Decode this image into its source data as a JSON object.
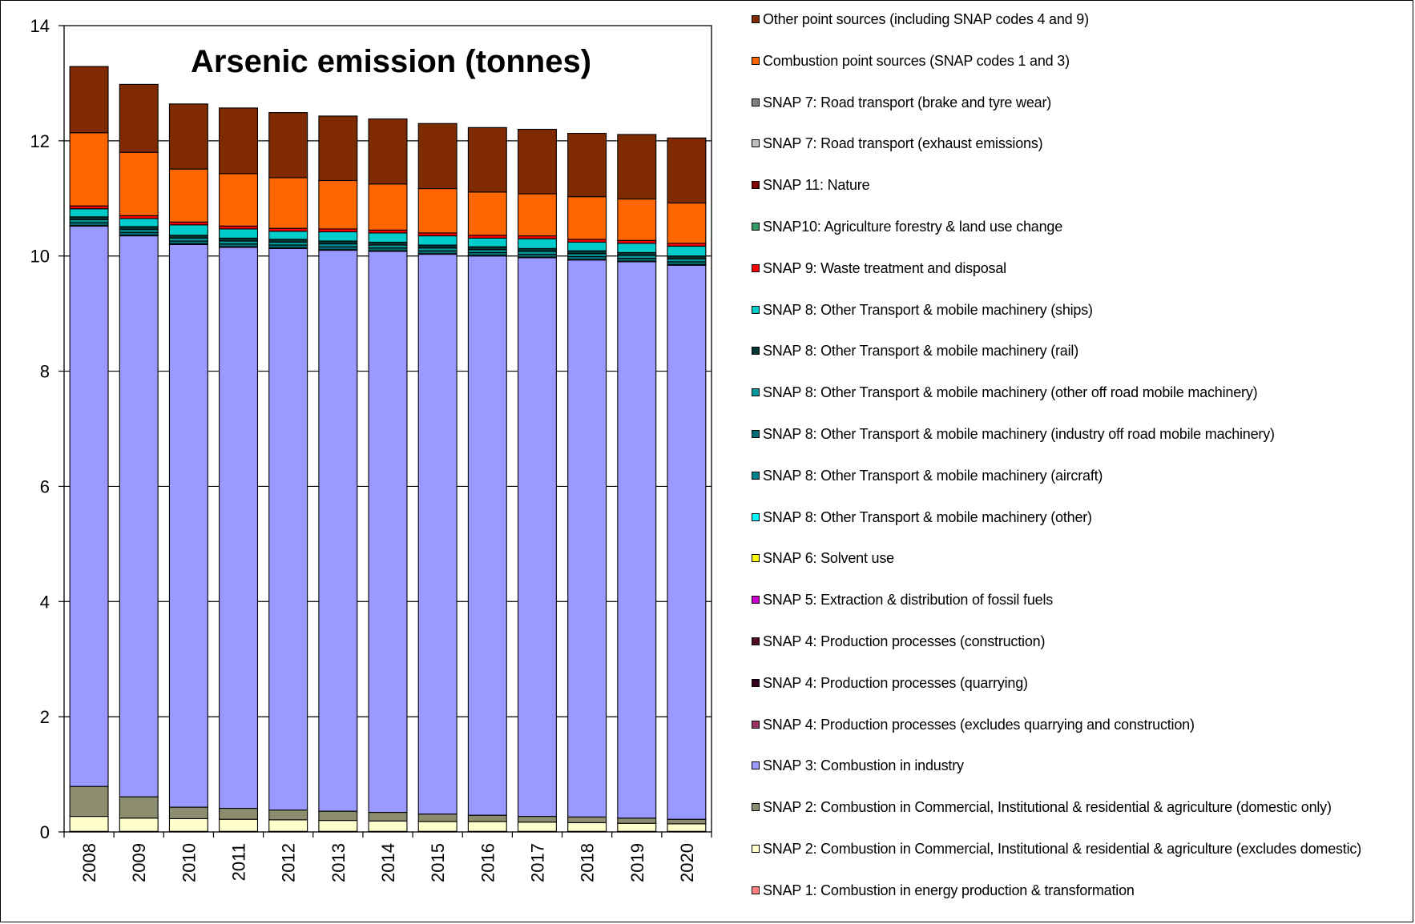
{
  "chart_data": {
    "type": "bar",
    "stacked": true,
    "title": "Arsenic emission (tonnes)",
    "xlabel": "",
    "ylabel": "",
    "ylim": [
      0,
      14
    ],
    "yticks": [
      0,
      2,
      4,
      6,
      8,
      10,
      12,
      14
    ],
    "grid": true,
    "legend_position": "right",
    "categories": [
      "2008",
      "2009",
      "2010",
      "2011",
      "2012",
      "2013",
      "2014",
      "2015",
      "2016",
      "2017",
      "2018",
      "2019",
      "2020"
    ],
    "series": [
      {
        "name": "SNAP 1: Combustion in energy production & transformation",
        "color": "#ff8080",
        "values": [
          0.01,
          0.01,
          0.01,
          0.01,
          0.01,
          0.01,
          0.01,
          0.01,
          0.01,
          0.01,
          0.01,
          0.01,
          0.01
        ]
      },
      {
        "name": "SNAP 2: Combustion in Commercial, Institutional & residential & agriculture (excludes domestic)",
        "color": "#ffffcc",
        "values": [
          0.26,
          0.23,
          0.22,
          0.21,
          0.2,
          0.19,
          0.18,
          0.17,
          0.17,
          0.16,
          0.15,
          0.14,
          0.13
        ]
      },
      {
        "name": "SNAP 2: Combustion in Commercial, Institutional & residential & agriculture (domestic only)",
        "color": "#8c8c6e",
        "values": [
          0.52,
          0.37,
          0.2,
          0.19,
          0.17,
          0.16,
          0.15,
          0.13,
          0.11,
          0.1,
          0.1,
          0.09,
          0.08
        ]
      },
      {
        "name": "SNAP 3: Combustion in industry",
        "color": "#9999ff",
        "values": [
          9.73,
          9.74,
          9.77,
          9.74,
          9.75,
          9.74,
          9.74,
          9.72,
          9.71,
          9.7,
          9.67,
          9.66,
          9.62
        ]
      },
      {
        "name": "SNAP 4: Production processes (excludes quarrying and construction)",
        "color": "#993366",
        "values": [
          0.01,
          0.01,
          0.01,
          0.01,
          0.01,
          0.01,
          0.01,
          0.01,
          0.01,
          0.01,
          0.01,
          0.01,
          0.01
        ]
      },
      {
        "name": "SNAP 4: Production processes (quarrying)",
        "color": "#33001a",
        "values": [
          0.0,
          0.0,
          0.0,
          0.0,
          0.0,
          0.0,
          0.0,
          0.0,
          0.0,
          0.0,
          0.0,
          0.0,
          0.0
        ]
      },
      {
        "name": "SNAP 4: Production processes (construction)",
        "color": "#4d0f1f",
        "values": [
          0.0,
          0.0,
          0.0,
          0.0,
          0.0,
          0.0,
          0.0,
          0.0,
          0.0,
          0.0,
          0.0,
          0.0,
          0.0
        ]
      },
      {
        "name": "SNAP 5: Extraction & distribution of fossil fuels",
        "color": "#cc00cc",
        "values": [
          0.0,
          0.0,
          0.0,
          0.0,
          0.0,
          0.0,
          0.0,
          0.0,
          0.0,
          0.0,
          0.0,
          0.0,
          0.0
        ]
      },
      {
        "name": "SNAP 6: Solvent use",
        "color": "#ffff00",
        "values": [
          0.0,
          0.0,
          0.0,
          0.0,
          0.0,
          0.0,
          0.0,
          0.0,
          0.0,
          0.0,
          0.0,
          0.0,
          0.0
        ]
      },
      {
        "name": "SNAP 8: Other Transport & mobile machinery (other)",
        "color": "#00ffff",
        "values": [
          0.0,
          0.0,
          0.0,
          0.0,
          0.0,
          0.0,
          0.0,
          0.0,
          0.0,
          0.0,
          0.0,
          0.0,
          0.0
        ]
      },
      {
        "name": "SNAP 8: Other Transport & mobile machinery (aircraft)",
        "color": "#00808a",
        "values": [
          0.0,
          0.0,
          0.0,
          0.0,
          0.0,
          0.0,
          0.0,
          0.0,
          0.0,
          0.0,
          0.0,
          0.0,
          0.0
        ]
      },
      {
        "name": "SNAP 8: Other Transport & mobile machinery (industry off road mobile machinery)",
        "color": "#006d75",
        "values": [
          0.05,
          0.05,
          0.05,
          0.05,
          0.05,
          0.05,
          0.05,
          0.05,
          0.05,
          0.05,
          0.05,
          0.05,
          0.05
        ]
      },
      {
        "name": "SNAP 8: Other Transport & mobile machinery (other off road mobile machinery)",
        "color": "#009999",
        "values": [
          0.05,
          0.05,
          0.05,
          0.05,
          0.05,
          0.05,
          0.05,
          0.05,
          0.05,
          0.05,
          0.05,
          0.05,
          0.05
        ]
      },
      {
        "name": "SNAP 8: Other Transport & mobile machinery (rail)",
        "color": "#003333",
        "values": [
          0.05,
          0.05,
          0.05,
          0.05,
          0.05,
          0.05,
          0.05,
          0.05,
          0.05,
          0.05,
          0.05,
          0.05,
          0.05
        ]
      },
      {
        "name": "SNAP 8: Other Transport & mobile machinery (ships)",
        "color": "#00cccc",
        "values": [
          0.14,
          0.14,
          0.18,
          0.16,
          0.14,
          0.16,
          0.16,
          0.16,
          0.15,
          0.17,
          0.15,
          0.16,
          0.17
        ]
      },
      {
        "name": "SNAP 9: Waste treatment and disposal",
        "color": "#ff0000",
        "values": [
          0.05,
          0.05,
          0.05,
          0.05,
          0.05,
          0.05,
          0.05,
          0.05,
          0.05,
          0.05,
          0.05,
          0.05,
          0.05
        ]
      },
      {
        "name": "SNAP10: Agriculture forestry & land use change",
        "color": "#339966",
        "values": [
          0.0,
          0.0,
          0.0,
          0.0,
          0.0,
          0.0,
          0.0,
          0.0,
          0.0,
          0.0,
          0.0,
          0.0,
          0.0
        ]
      },
      {
        "name": "SNAP 11: Nature",
        "color": "#800000",
        "values": [
          0.0,
          0.0,
          0.0,
          0.0,
          0.0,
          0.0,
          0.0,
          0.0,
          0.0,
          0.0,
          0.0,
          0.0,
          0.0
        ]
      },
      {
        "name": "SNAP 7: Road transport (exhaust emissions)",
        "color": "#c0c0c0",
        "values": [
          0.0,
          0.0,
          0.0,
          0.0,
          0.0,
          0.0,
          0.0,
          0.0,
          0.0,
          0.0,
          0.0,
          0.0,
          0.0
        ]
      },
      {
        "name": "SNAP 7: Road transport (brake and tyre wear)",
        "color": "#808080",
        "values": [
          0.0,
          0.0,
          0.0,
          0.0,
          0.0,
          0.0,
          0.0,
          0.0,
          0.0,
          0.0,
          0.0,
          0.0,
          0.0
        ]
      },
      {
        "name": "Combustion point sources (SNAP codes 1 and 3)",
        "color": "#ff6600",
        "values": [
          1.27,
          1.1,
          0.92,
          0.91,
          0.88,
          0.84,
          0.8,
          0.77,
          0.75,
          0.73,
          0.74,
          0.72,
          0.7
        ]
      },
      {
        "name": "Other point sources (including SNAP codes 4 and 9)",
        "color": "#7f2a00",
        "values": [
          1.15,
          1.18,
          1.13,
          1.14,
          1.13,
          1.12,
          1.13,
          1.13,
          1.12,
          1.12,
          1.1,
          1.12,
          1.13
        ]
      }
    ]
  }
}
